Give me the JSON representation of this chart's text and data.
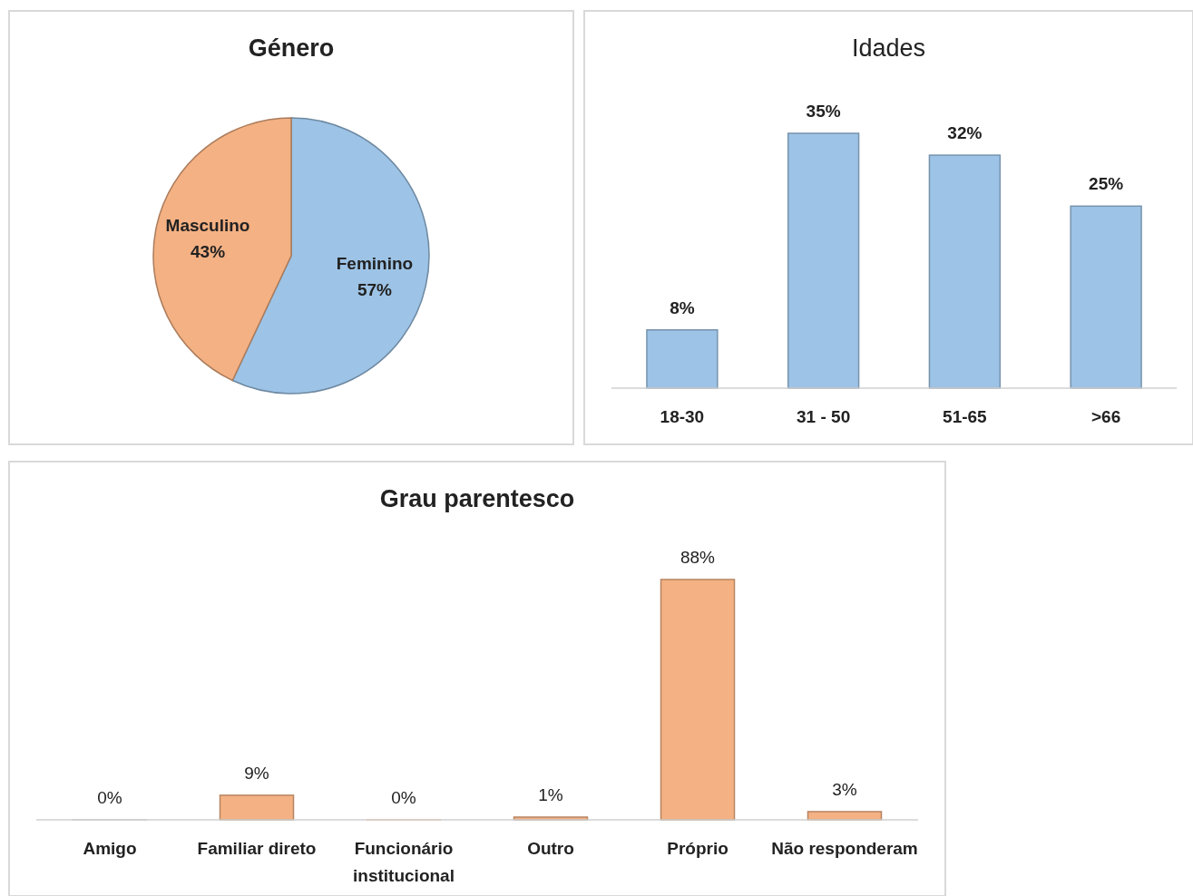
{
  "chart_data": [
    {
      "type": "pie",
      "title": "Género",
      "categories": [
        "Feminino",
        "Masculino"
      ],
      "values": [
        57,
        43
      ],
      "colors": [
        "#9dc3e6",
        "#f4b183"
      ],
      "value_labels": [
        "57%",
        "43%"
      ]
    },
    {
      "type": "bar",
      "title": "Idades",
      "categories": [
        "18-30",
        "31 - 50",
        "51-65",
        ">66"
      ],
      "values": [
        8,
        35,
        32,
        25
      ],
      "color": "#9dc3e6",
      "value_labels": [
        "8%",
        "35%",
        "32%",
        "25%"
      ]
    },
    {
      "type": "bar",
      "title": "Grau parentesco",
      "categories": [
        "Amigo",
        "Familiar direto",
        "Funcionário institucional",
        "Outro",
        "Próprio",
        "Não responderam"
      ],
      "values": [
        0,
        9,
        0,
        1,
        88,
        3
      ],
      "colors": [
        "#bfbfbf",
        "#f4b183",
        "#f4b183",
        "#f4b183",
        "#f4b183",
        "#f4b183"
      ],
      "value_labels": [
        "0%",
        "9%",
        "0%",
        "1%",
        "88%",
        "3%"
      ]
    }
  ]
}
